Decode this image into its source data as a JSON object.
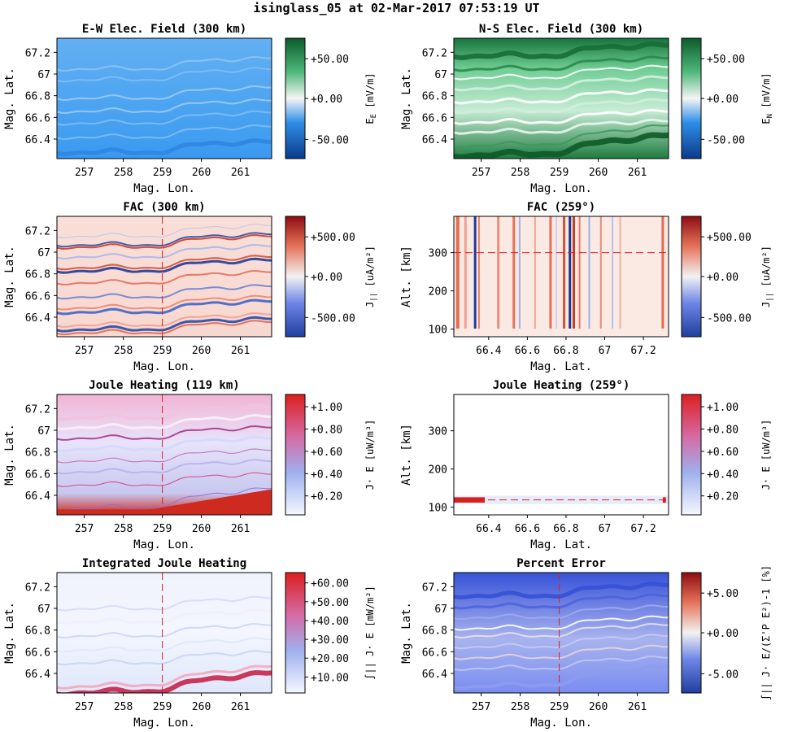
{
  "suptitle": "isinglass_05 at 02-Mar-2017 07:53:19 UT",
  "chart_data": [
    {
      "type": "heatmap",
      "title": "E-W Elec. Field (300 km)",
      "xlabel": "Mag. Lon.",
      "ylabel": "Mag. Lat.",
      "xlim": [
        256.3,
        261.8
      ],
      "ylim": [
        66.22,
        67.33
      ],
      "xticks": [
        "257",
        "258",
        "259",
        "260",
        "261"
      ],
      "yticks": [
        "66.4",
        "66.6",
        "66.8",
        "67",
        "67.2"
      ],
      "colorbar": {
        "label_main": "E",
        "label_sub": "E",
        "label_unit": "[mV/m]",
        "ticks": [
          "+50.00",
          "+0.00",
          "-50.00"
        ],
        "colormap": "blue-white-green"
      },
      "field": "ew",
      "slice_line": false
    },
    {
      "type": "heatmap",
      "title": "N-S Elec. Field (300 km)",
      "xlabel": "Mag. Lon.",
      "ylabel": "Mag. Lat.",
      "xlim": [
        256.3,
        261.8
      ],
      "ylim": [
        66.22,
        67.33
      ],
      "xticks": [
        "257",
        "258",
        "259",
        "260",
        "261"
      ],
      "yticks": [
        "66.4",
        "66.6",
        "66.8",
        "67",
        "67.2"
      ],
      "colorbar": {
        "label_main": "E",
        "label_sub": "N",
        "label_unit": "[mV/m]",
        "ticks": [
          "+50.00",
          "+0.00",
          "-50.00"
        ],
        "colormap": "blue-white-green"
      },
      "field": "ns",
      "slice_line": false
    },
    {
      "type": "heatmap",
      "title": "FAC (300 km)",
      "xlabel": "Mag. Lon.",
      "ylabel": "Mag. Lat.",
      "xlim": [
        256.3,
        261.8
      ],
      "ylim": [
        66.22,
        67.33
      ],
      "xticks": [
        "257",
        "258",
        "259",
        "260",
        "261"
      ],
      "yticks": [
        "66.4",
        "66.6",
        "66.8",
        "67",
        "67.2"
      ],
      "colorbar": {
        "label_main": "J",
        "label_sub": "||",
        "label_unit": "[uA/m²]",
        "ticks": [
          "+500.00",
          "+0.00",
          "-500.00"
        ],
        "colormap": "blue-white-red"
      },
      "field": "fac",
      "slice_line": true,
      "slice_at": 259
    },
    {
      "type": "heatmap",
      "title": "FAC (259°)",
      "xlabel": "Mag. Lat.",
      "ylabel": "Alt. [km]",
      "xlim": [
        66.22,
        67.33
      ],
      "ylim": [
        80,
        395
      ],
      "xticks": [
        "66.4",
        "66.6",
        "66.8",
        "67",
        "67.2"
      ],
      "yticks": [
        "100",
        "200",
        "300"
      ],
      "colorbar": {
        "label_main": "J",
        "label_sub": "||",
        "label_unit": "[uA/m²]",
        "ticks": [
          "+500.00",
          "+0.00",
          "-500.00"
        ],
        "colormap": "blue-white-red"
      },
      "field": "facv",
      "hline_at": 300
    },
    {
      "type": "heatmap",
      "title": "Joule Heating (119 km)",
      "xlabel": "Mag. Lon.",
      "ylabel": "Mag. Lat.",
      "xlim": [
        256.3,
        261.8
      ],
      "ylim": [
        66.22,
        67.33
      ],
      "xticks": [
        "257",
        "258",
        "259",
        "260",
        "261"
      ],
      "yticks": [
        "66.4",
        "66.6",
        "66.8",
        "67",
        "67.2"
      ],
      "colorbar": {
        "label_main": "J· E",
        "label_sub": "",
        "label_unit": "[uW/m³]",
        "ticks": [
          "+1.00",
          "+0.80",
          "+0.60",
          "+0.40",
          "+0.20"
        ],
        "colormap": "white-blue-red"
      },
      "field": "jh",
      "slice_line": true,
      "slice_at": 259
    },
    {
      "type": "heatmap",
      "title": "Joule Heating (259°)",
      "xlabel": "Mag. Lat.",
      "ylabel": "Alt. [km]",
      "xlim": [
        66.22,
        67.33
      ],
      "ylim": [
        80,
        395
      ],
      "xticks": [
        "66.4",
        "66.6",
        "66.8",
        "67",
        "67.2"
      ],
      "yticks": [
        "100",
        "200",
        "300"
      ],
      "colorbar": {
        "label_main": "J· E",
        "label_sub": "",
        "label_unit": "[uW/m³]",
        "ticks": [
          "+1.00",
          "+0.80",
          "+0.60",
          "+0.40",
          "+0.20"
        ],
        "colormap": "white-blue-red"
      },
      "field": "jhv",
      "hline_at": 119
    },
    {
      "type": "heatmap",
      "title": "Integrated Joule Heating",
      "xlabel": "Mag. Lon.",
      "ylabel": "Mag. Lat.",
      "xlim": [
        256.3,
        261.8
      ],
      "ylim": [
        66.22,
        67.33
      ],
      "xticks": [
        "257",
        "258",
        "259",
        "260",
        "261"
      ],
      "yticks": [
        "66.4",
        "66.6",
        "66.8",
        "67",
        "67.2"
      ],
      "colorbar": {
        "label_main": "∫|| J· E",
        "label_sub": "",
        "label_unit": "[mW/m²]",
        "ticks": [
          "+60.00",
          "+50.00",
          "+40.00",
          "+30.00",
          "+20.00",
          "+10.00"
        ],
        "colormap": "white-blue-red"
      },
      "field": "ijh",
      "slice_line": true,
      "slice_at": 259
    },
    {
      "type": "heatmap",
      "title": "Percent Error",
      "xlabel": "Mag. Lon.",
      "ylabel": "Mag. Lat.",
      "xlim": [
        256.3,
        261.8
      ],
      "ylim": [
        66.22,
        67.33
      ],
      "xticks": [
        "257",
        "258",
        "259",
        "260",
        "261"
      ],
      "yticks": [
        "66.4",
        "66.6",
        "66.8",
        "67",
        "67.2"
      ],
      "colorbar": {
        "label_main": "∫|| J· E/(Σ'P E²)-1",
        "label_sub": "",
        "label_unit": "[%]",
        "ticks": [
          "+5.00",
          "+0.00",
          "-5.00"
        ],
        "colormap": "blue-white-red"
      },
      "field": "pe",
      "slice_line": true,
      "slice_at": 259
    }
  ]
}
